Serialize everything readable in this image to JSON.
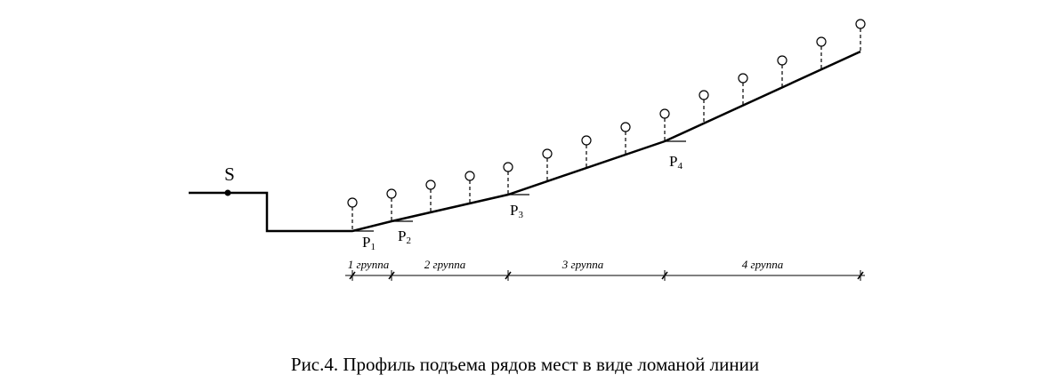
{
  "diagram": {
    "source_label": "S",
    "points": [
      {
        "letter": "P",
        "sub": "1"
      },
      {
        "letter": "P",
        "sub": "2"
      },
      {
        "letter": "P",
        "sub": "3"
      },
      {
        "letter": "P",
        "sub": "4"
      }
    ],
    "groups": [
      "1 группа",
      "2 группа",
      "3 группа",
      "4 группа"
    ],
    "caption": "Рис.4.  Профиль подъема рядов мест в виде ломаной линии"
  }
}
